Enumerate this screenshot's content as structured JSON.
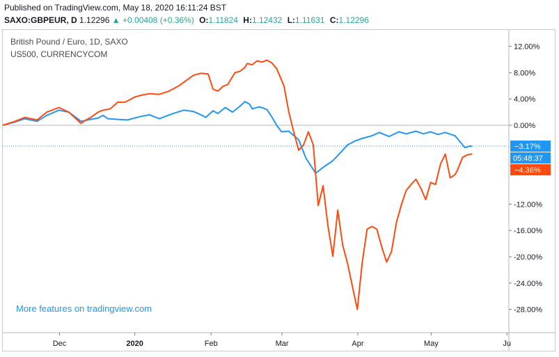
{
  "header": {
    "published": "Published on TradingView.com, May 18, 2020 16:11:24 BST",
    "symbol": "SAXO:GBPEUR, D",
    "last": "1.12296",
    "change": "+0.00408 (+0.36%)",
    "open_label": "O:",
    "open": "1.11824",
    "high_label": "H:",
    "high": "1.12432",
    "low_label": "L:",
    "low": "1.11631",
    "close_label": "C:",
    "close": "1.12296"
  },
  "legend": {
    "main": "British Pound / Euro, 1D, SAXO",
    "compare": "US500, CURRENCYCOM"
  },
  "promo": "More features on tradingview.com",
  "colors": {
    "gbpeur": "#2196f3",
    "us500": "#ff4a0f",
    "axis": "#131722",
    "grid_zero": "#9aa0a6"
  },
  "chart_data": {
    "type": "line",
    "ylabel_unit": "%",
    "y_ticks": [
      "12.00%",
      "8.00%",
      "4.00%",
      "0.00%",
      "-12.00%",
      "-16.00%",
      "-20.00%",
      "-24.00%",
      "-28.00%"
    ],
    "y_tick_values": [
      12,
      8,
      4,
      0,
      -12,
      -16,
      -20,
      -24,
      -28
    ],
    "ylim": [
      -31,
      15
    ],
    "x_ticks": [
      {
        "label": "Dec",
        "x": 9.2,
        "bold": false
      },
      {
        "label": "2020",
        "x": 40,
        "bold": true
      },
      {
        "label": "Feb",
        "x": 71.2,
        "bold": false
      },
      {
        "label": "Mar",
        "x": 100.2,
        "bold": false
      },
      {
        "label": "Apr",
        "x": 131.2,
        "bold": false
      },
      {
        "label": "May",
        "x": 161.2,
        "bold": false
      },
      {
        "label": "Ju",
        "x": 192.2,
        "bold": false
      }
    ],
    "xlim": [
      -14,
      193
    ],
    "series": [
      {
        "name": "SAXO:GBPEUR",
        "color": "#2196f3",
        "x": [
          -14,
          -9,
          -5,
          0,
          4,
          9,
          13,
          18,
          22,
          25,
          27,
          29,
          33,
          37,
          42,
          46,
          50,
          55,
          60,
          64,
          67,
          69,
          72,
          74,
          77,
          80,
          83,
          85,
          87,
          88,
          89,
          91,
          94,
          96,
          98,
          100,
          103,
          107,
          110,
          114,
          117,
          121,
          124,
          127,
          130,
          133,
          137,
          140,
          144,
          148,
          151,
          155,
          158,
          161,
          164,
          167,
          171,
          173,
          175,
          177,
          178
        ],
        "y": [
          0.0,
          0.5,
          1.0,
          0.6,
          1.5,
          2.3,
          2.0,
          0.6,
          0.9,
          1.1,
          1.5,
          1.0,
          0.9,
          0.8,
          1.3,
          1.6,
          1.0,
          1.7,
          2.3,
          2.1,
          1.6,
          1.2,
          2.2,
          1.8,
          2.7,
          2.0,
          2.9,
          3.6,
          3.2,
          2.5,
          2.6,
          2.8,
          2.4,
          1.3,
          0.0,
          -1.0,
          -0.9,
          -2.2,
          -5.0,
          -7.3,
          -6.4,
          -5.4,
          -4.2,
          -3.0,
          -2.4,
          -2.0,
          -1.6,
          -1.1,
          -1.7,
          -1.0,
          -1.3,
          -0.9,
          -1.3,
          -1.0,
          -1.4,
          -1.1,
          -1.6,
          -2.5,
          -3.4,
          -3.17,
          -3.2
        ]
      },
      {
        "name": "US500",
        "color": "#ff4a0f",
        "x": [
          -14,
          -9,
          -5,
          0,
          4,
          9,
          13,
          18,
          20,
          22,
          25,
          27,
          30,
          33,
          36,
          40,
          43,
          46,
          50,
          54,
          58,
          61,
          64,
          67,
          70,
          72,
          74,
          76,
          78,
          81,
          83,
          85,
          86,
          88,
          90,
          92,
          94,
          96,
          98,
          101,
          103,
          105,
          107,
          109,
          111,
          113,
          115,
          117,
          119,
          121,
          123,
          125,
          127,
          129,
          131,
          133,
          135,
          137,
          139,
          141,
          143,
          145,
          147,
          149,
          151,
          153,
          155,
          157,
          159,
          161,
          163,
          165,
          167,
          169,
          171,
          172,
          174,
          176,
          178
        ],
        "y": [
          0.0,
          0.6,
          1.2,
          0.8,
          2.0,
          2.7,
          2.0,
          0.3,
          0.8,
          1.2,
          2.0,
          2.3,
          2.5,
          3.5,
          3.5,
          4.3,
          4.6,
          4.8,
          4.7,
          5.2,
          6.0,
          6.8,
          7.6,
          7.9,
          7.8,
          5.5,
          5.2,
          5.9,
          6.2,
          8.0,
          8.2,
          8.8,
          9.4,
          9.2,
          9.8,
          9.6,
          9.9,
          9.5,
          8.6,
          6.0,
          2.0,
          -1.0,
          -3.8,
          -3.0,
          -1.0,
          -3.0,
          -12.2,
          -9.2,
          -15.3,
          -19.9,
          -12.9,
          -18.2,
          -21.0,
          -24.5,
          -28.0,
          -20.9,
          -15.8,
          -15.4,
          -15.8,
          -18.5,
          -20.8,
          -19.2,
          -14.8,
          -12.1,
          -9.9,
          -9.0,
          -8.2,
          -9.6,
          -11.3,
          -8.7,
          -9.0,
          -5.9,
          -4.4,
          -8.0,
          -7.5,
          -6.8,
          -4.9,
          -4.5,
          -4.36
        ]
      }
    ],
    "last_value_labels": [
      {
        "series": "SAXO:GBPEUR",
        "value": -3.17,
        "text": "−3.17%",
        "color": "#2196f3"
      },
      {
        "series": "US500",
        "value": -4.36,
        "text": "−4.36%",
        "color": "#ff4a0f"
      }
    ],
    "countdown": "05:48:37",
    "price_line_value": -3.17
  }
}
